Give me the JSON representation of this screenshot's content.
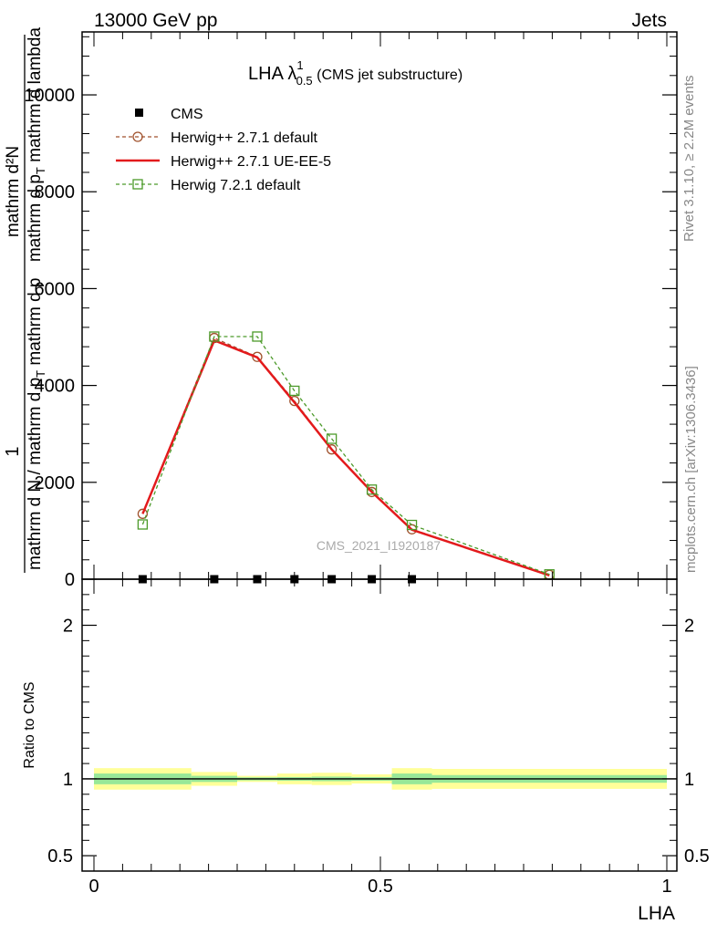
{
  "header": {
    "process": "13000 GeV pp",
    "category": "Jets"
  },
  "side_labels": {
    "rivet": "Rivet 3.1.10, ≥ 2.2M events",
    "mcplots": "mcplots.cern.ch [arXiv:1306.3436]"
  },
  "chart_data": [
    {
      "type": "line",
      "title_main": "LHA λ",
      "title_sup": "1",
      "title_sub": "0.5",
      "title_suffix": " (CMS jet substructure)",
      "watermark": "CMS_2021_I1920187",
      "ylabel_top": "1",
      "ylabel_num": "mathrm d²N",
      "ylabel_den_a": "mathrm d p",
      "ylabel_den_sub": "T",
      "ylabel_den_b": " mathrm d lambda",
      "ylabel_mid": "mathrm d N / mathrm d p",
      "ylabel_mid_sub": "T",
      "ylabel_mid_b": " mathrm d p",
      "xlim": [
        0,
        1
      ],
      "ylim": [
        0,
        11300
      ],
      "yticks": [
        0,
        2000,
        4000,
        6000,
        8000,
        10000
      ],
      "ytick_labels": [
        "0",
        "2000",
        "4000",
        "6000",
        "8000",
        "10000"
      ],
      "series": [
        {
          "name": "CMS",
          "color": "#000000",
          "style": "markers",
          "x": [
            0.085,
            0.21,
            0.285,
            0.35,
            0.415,
            0.485,
            0.555
          ],
          "y": [
            0,
            0,
            0,
            0,
            0,
            0,
            0
          ]
        },
        {
          "name": "Herwig++ 2.7.1 default",
          "color": "#a0522d",
          "style": "dashed-circle",
          "x": [
            0.085,
            0.21,
            0.285,
            0.35,
            0.415,
            0.485,
            0.555,
            0.795
          ],
          "y": [
            1350,
            4980,
            4590,
            3680,
            2680,
            1800,
            1030,
            90
          ]
        },
        {
          "name": "Herwig++ 2.7.1 UE-EE-5",
          "color": "#e31a1c",
          "style": "solid",
          "x": [
            0.085,
            0.21,
            0.285,
            0.35,
            0.415,
            0.485,
            0.555,
            0.795
          ],
          "y": [
            1350,
            4930,
            4580,
            3650,
            2680,
            1800,
            1020,
            80
          ]
        },
        {
          "name": "Herwig 7.2.1 default",
          "color": "#4c9a2a",
          "style": "dashed-square",
          "x": [
            0.085,
            0.21,
            0.285,
            0.35,
            0.415,
            0.485,
            0.555,
            0.795
          ],
          "y": [
            1130,
            5010,
            5010,
            3890,
            2900,
            1850,
            1120,
            100
          ]
        }
      ]
    },
    {
      "type": "line",
      "ylabel": "Ratio to CMS",
      "xlabel": "LHA",
      "xlim": [
        0,
        1
      ],
      "ylim": [
        0.4,
        2.3
      ],
      "yticks": [
        0.5,
        1,
        2
      ],
      "ytick_labels": [
        "0.5",
        "1",
        "2"
      ],
      "xticks": [
        0,
        0.5,
        1
      ],
      "xtick_labels": [
        "0",
        "0.5",
        "1"
      ],
      "reference": 1,
      "bands": [
        {
          "x0": 0.0,
          "x1": 0.17,
          "stat": 0.035,
          "total": 0.07
        },
        {
          "x0": 0.17,
          "x1": 0.25,
          "stat": 0.02,
          "total": 0.045
        },
        {
          "x0": 0.25,
          "x1": 0.32,
          "stat": 0.01,
          "total": 0.02
        },
        {
          "x0": 0.32,
          "x1": 0.38,
          "stat": 0.012,
          "total": 0.035
        },
        {
          "x0": 0.38,
          "x1": 0.45,
          "stat": 0.015,
          "total": 0.04
        },
        {
          "x0": 0.45,
          "x1": 0.52,
          "stat": 0.012,
          "total": 0.03
        },
        {
          "x0": 0.52,
          "x1": 0.59,
          "stat": 0.035,
          "total": 0.07
        },
        {
          "x0": 0.59,
          "x1": 1.0,
          "stat": 0.025,
          "total": 0.065
        }
      ],
      "band_colors": {
        "stat": "#98e898",
        "total": "#ffff99"
      }
    }
  ]
}
